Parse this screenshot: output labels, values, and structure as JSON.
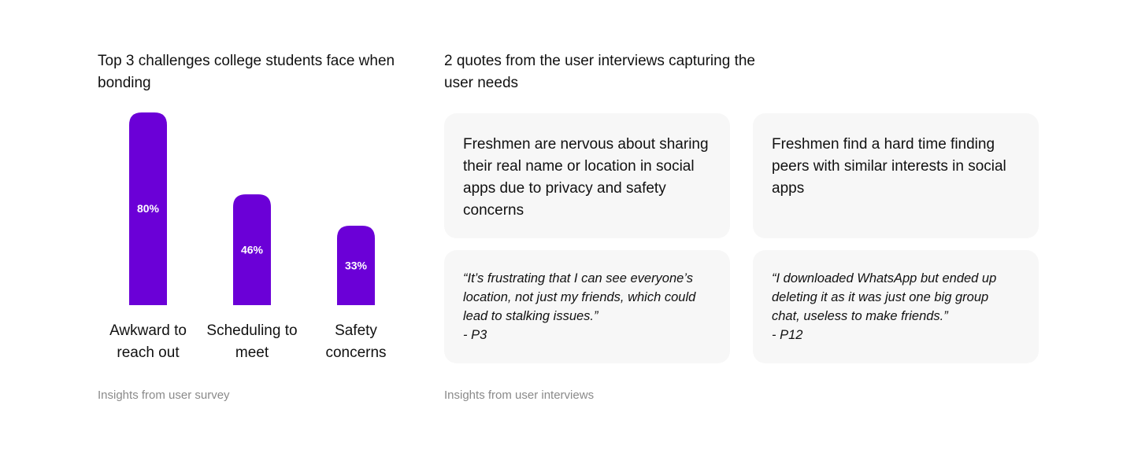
{
  "left_section": {
    "title": "Top 3 challenges college students face when bonding",
    "footnote": "Insights from user survey"
  },
  "chart_data": {
    "type": "bar",
    "title": "Top 3 challenges college students face when bonding",
    "categories": [
      [
        "Awkward to",
        "reach out"
      ],
      [
        "Scheduling to",
        "meet"
      ],
      [
        "Safety",
        "concerns"
      ]
    ],
    "values": [
      80,
      46,
      33
    ],
    "data_labels": [
      "80%",
      "46%",
      "33%"
    ],
    "ylim": [
      0,
      80
    ],
    "grid": false,
    "legend": "none",
    "bar_color": "#6b00d7"
  },
  "right_section": {
    "title": "2 quotes from the user interviews capturing the user needs",
    "footnote": "Insights from user interviews",
    "needs": [
      "Freshmen are nervous about sharing their real name or location in social apps due to privacy and safety concerns",
      "Freshmen find a hard time finding peers with similar interests in social apps"
    ],
    "quotes": [
      {
        "text": "“It’s frustrating that I can see everyone’s location, not just my friends, which could lead to stalking issues.”",
        "attribution": "- P3"
      },
      {
        "text": "“I downloaded WhatsApp but ended up deleting it as it was just one big group chat, useless to make friends.”",
        "attribution": "- P12"
      }
    ]
  }
}
